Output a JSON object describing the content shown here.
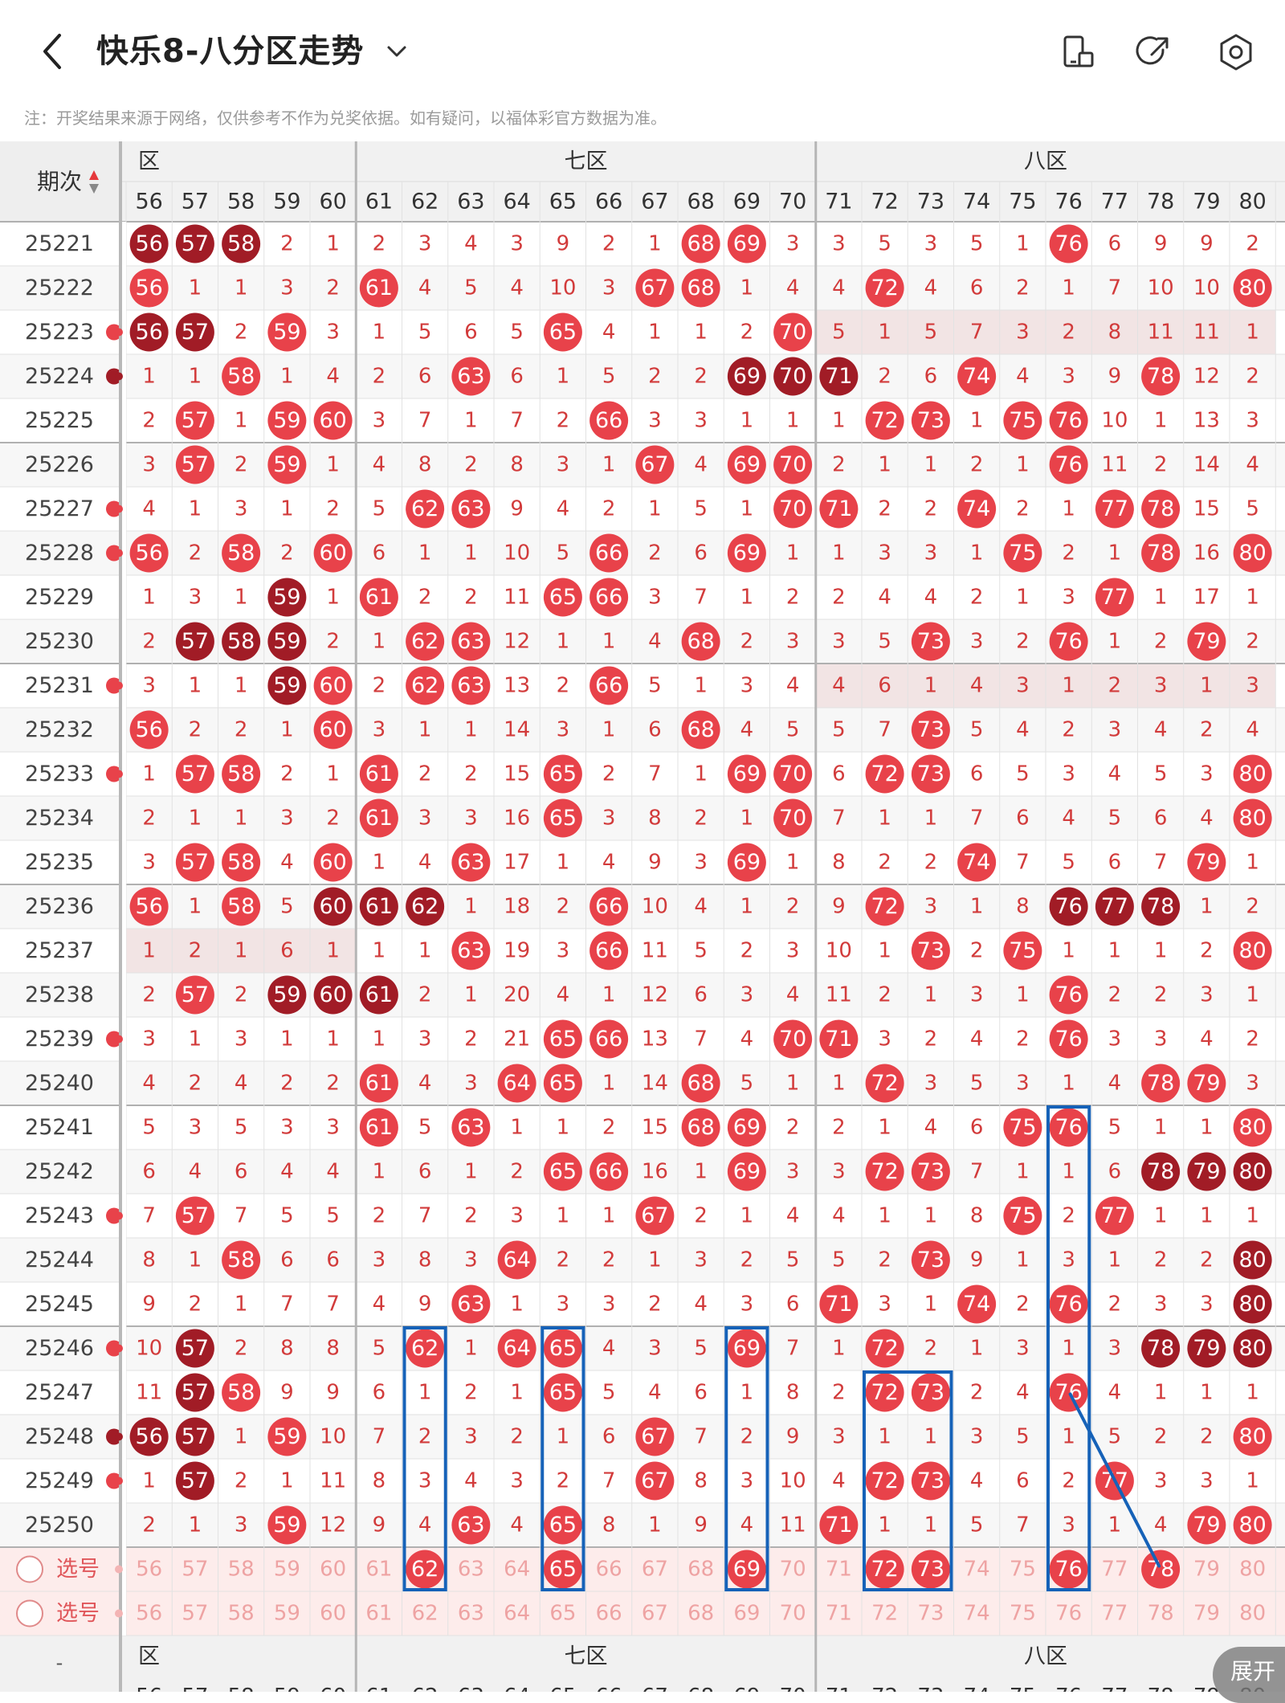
{
  "header": {
    "title": "快乐8-八分区走势",
    "back_icon": "chevron-left-icon",
    "dropdown_icon": "chevron-down-icon",
    "actions": [
      {
        "icon": "layout-icon"
      },
      {
        "icon": "share-icon"
      },
      {
        "icon": "settings-icon"
      }
    ]
  },
  "note": "注：开奖结果来源于网络，仅供参考不作为兑奖依据。如有疑问，以福体彩官方数据为准。",
  "table": {
    "period_header": "期次",
    "sort_icon": "sort-arrows-icon",
    "zones": [
      {
        "label": "六区",
        "visible_text": "区"
      },
      {
        "label": "七区",
        "visible_text": "七区"
      },
      {
        "label": "八区",
        "visible_text": "八区"
      }
    ],
    "columns": [
      "56",
      "57",
      "58",
      "59",
      "60",
      "61",
      "62",
      "63",
      "64",
      "65",
      "66",
      "67",
      "68",
      "69",
      "70",
      "71",
      "72",
      "73",
      "74",
      "75",
      "76",
      "77",
      "78",
      "79",
      "80"
    ],
    "rows": [
      {
        "period": "25221",
        "cells": [
          "56",
          "57",
          "58",
          "2",
          "1",
          "2",
          "3",
          "4",
          "3",
          "9",
          "2",
          "1",
          "68",
          "69",
          "3",
          "3",
          "5",
          "3",
          "5",
          "1",
          "76",
          "6",
          "9",
          "9",
          "2"
        ]
      },
      {
        "period": "25222",
        "cells": [
          "56",
          "1",
          "1",
          "3",
          "2",
          "61",
          "4",
          "5",
          "4",
          "10",
          "3",
          "67",
          "68",
          "1",
          "4",
          "4",
          "72",
          "4",
          "6",
          "2",
          "1",
          "7",
          "10",
          "10",
          "80"
        ]
      },
      {
        "period": "25223",
        "cells": [
          "56",
          "57",
          "2",
          "59",
          "3",
          "1",
          "5",
          "6",
          "5",
          "65",
          "4",
          "1",
          "1",
          "2",
          "70",
          "5",
          "1",
          "5",
          "7",
          "3",
          "2",
          "8",
          "11",
          "11",
          "1"
        ]
      },
      {
        "period": "25224",
        "cells": [
          "1",
          "1",
          "58",
          "1",
          "4",
          "2",
          "6",
          "63",
          "6",
          "1",
          "5",
          "2",
          "2",
          "69",
          "70",
          "71",
          "2",
          "6",
          "74",
          "4",
          "3",
          "9",
          "78",
          "12",
          "2"
        ]
      },
      {
        "period": "25225",
        "cells": [
          "2",
          "57",
          "1",
          "59",
          "60",
          "3",
          "7",
          "1",
          "7",
          "2",
          "66",
          "3",
          "3",
          "1",
          "1",
          "1",
          "72",
          "73",
          "1",
          "75",
          "76",
          "10",
          "1",
          "13",
          "3"
        ]
      },
      {
        "period": "25226",
        "cells": [
          "3",
          "57",
          "2",
          "59",
          "1",
          "4",
          "8",
          "2",
          "8",
          "3",
          "1",
          "67",
          "4",
          "69",
          "70",
          "2",
          "1",
          "1",
          "2",
          "1",
          "76",
          "11",
          "2",
          "14",
          "4"
        ]
      },
      {
        "period": "25227",
        "cells": [
          "4",
          "1",
          "3",
          "1",
          "2",
          "5",
          "62",
          "63",
          "9",
          "4",
          "2",
          "1",
          "5",
          "1",
          "70",
          "71",
          "2",
          "2",
          "74",
          "2",
          "1",
          "77",
          "78",
          "15",
          "5"
        ]
      },
      {
        "period": "25228",
        "cells": [
          "56",
          "2",
          "58",
          "2",
          "60",
          "6",
          "1",
          "1",
          "10",
          "5",
          "66",
          "2",
          "6",
          "69",
          "1",
          "1",
          "3",
          "3",
          "1",
          "75",
          "2",
          "1",
          "78",
          "16",
          "80"
        ]
      },
      {
        "period": "25229",
        "cells": [
          "1",
          "3",
          "1",
          "59",
          "1",
          "61",
          "2",
          "2",
          "11",
          "65",
          "66",
          "3",
          "7",
          "1",
          "2",
          "2",
          "4",
          "4",
          "2",
          "1",
          "3",
          "77",
          "1",
          "17",
          "1"
        ]
      },
      {
        "period": "25230",
        "cells": [
          "2",
          "57",
          "58",
          "59",
          "2",
          "1",
          "62",
          "63",
          "12",
          "1",
          "1",
          "4",
          "68",
          "2",
          "3",
          "3",
          "5",
          "73",
          "3",
          "2",
          "76",
          "1",
          "2",
          "79",
          "2"
        ]
      },
      {
        "period": "25231",
        "cells": [
          "3",
          "1",
          "1",
          "59",
          "60",
          "2",
          "62",
          "63",
          "13",
          "2",
          "66",
          "5",
          "1",
          "3",
          "4",
          "4",
          "6",
          "1",
          "4",
          "3",
          "1",
          "2",
          "3",
          "1",
          "3"
        ]
      },
      {
        "period": "25232",
        "cells": [
          "56",
          "2",
          "2",
          "1",
          "60",
          "3",
          "1",
          "1",
          "14",
          "3",
          "1",
          "6",
          "68",
          "4",
          "5",
          "5",
          "7",
          "73",
          "5",
          "4",
          "2",
          "3",
          "4",
          "2",
          "4"
        ]
      },
      {
        "period": "25233",
        "cells": [
          "1",
          "57",
          "58",
          "2",
          "1",
          "61",
          "2",
          "2",
          "15",
          "65",
          "2",
          "7",
          "1",
          "69",
          "70",
          "6",
          "72",
          "73",
          "6",
          "5",
          "3",
          "4",
          "5",
          "3",
          "80"
        ]
      },
      {
        "period": "25234",
        "cells": [
          "2",
          "1",
          "1",
          "3",
          "2",
          "61",
          "3",
          "3",
          "16",
          "65",
          "3",
          "8",
          "2",
          "1",
          "70",
          "7",
          "1",
          "1",
          "7",
          "6",
          "4",
          "5",
          "6",
          "4",
          "80"
        ]
      },
      {
        "period": "25235",
        "cells": [
          "3",
          "57",
          "58",
          "4",
          "60",
          "1",
          "4",
          "63",
          "17",
          "1",
          "4",
          "9",
          "3",
          "69",
          "1",
          "8",
          "2",
          "2",
          "74",
          "7",
          "5",
          "6",
          "7",
          "79",
          "1"
        ]
      },
      {
        "period": "25236",
        "cells": [
          "56",
          "1",
          "58",
          "5",
          "60",
          "61",
          "62",
          "1",
          "18",
          "2",
          "66",
          "10",
          "4",
          "1",
          "2",
          "9",
          "72",
          "3",
          "1",
          "8",
          "76",
          "77",
          "78",
          "1",
          "2"
        ]
      },
      {
        "period": "25237",
        "cells": [
          "1",
          "2",
          "1",
          "6",
          "1",
          "1",
          "1",
          "63",
          "19",
          "3",
          "66",
          "11",
          "5",
          "2",
          "3",
          "10",
          "1",
          "73",
          "2",
          "75",
          "1",
          "1",
          "1",
          "2",
          "80"
        ]
      },
      {
        "period": "25238",
        "cells": [
          "2",
          "57",
          "2",
          "59",
          "60",
          "61",
          "2",
          "1",
          "20",
          "4",
          "1",
          "12",
          "6",
          "3",
          "4",
          "11",
          "2",
          "1",
          "3",
          "1",
          "76",
          "2",
          "2",
          "3",
          "1"
        ]
      },
      {
        "period": "25239",
        "cells": [
          "3",
          "1",
          "3",
          "1",
          "1",
          "1",
          "3",
          "2",
          "21",
          "65",
          "66",
          "13",
          "7",
          "4",
          "70",
          "71",
          "3",
          "2",
          "4",
          "2",
          "76",
          "3",
          "3",
          "4",
          "2"
        ]
      },
      {
        "period": "25240",
        "cells": [
          "4",
          "2",
          "4",
          "2",
          "2",
          "61",
          "4",
          "3",
          "64",
          "65",
          "1",
          "14",
          "68",
          "5",
          "1",
          "1",
          "72",
          "3",
          "5",
          "3",
          "1",
          "4",
          "78",
          "79",
          "3"
        ]
      },
      {
        "period": "25241",
        "cells": [
          "5",
          "3",
          "5",
          "3",
          "3",
          "61",
          "5",
          "63",
          "1",
          "1",
          "2",
          "15",
          "68",
          "69",
          "2",
          "2",
          "1",
          "4",
          "6",
          "75",
          "76",
          "5",
          "1",
          "1",
          "80"
        ]
      },
      {
        "period": "25242",
        "cells": [
          "6",
          "4",
          "6",
          "4",
          "4",
          "1",
          "6",
          "1",
          "2",
          "65",
          "66",
          "16",
          "1",
          "69",
          "3",
          "3",
          "72",
          "73",
          "7",
          "1",
          "1",
          "6",
          "78",
          "79",
          "80"
        ]
      },
      {
        "period": "25243",
        "cells": [
          "7",
          "57",
          "7",
          "5",
          "5",
          "2",
          "7",
          "2",
          "3",
          "1",
          "1",
          "67",
          "2",
          "1",
          "4",
          "4",
          "1",
          "1",
          "8",
          "75",
          "2",
          "77",
          "1",
          "1",
          "1"
        ]
      },
      {
        "period": "25244",
        "cells": [
          "8",
          "1",
          "58",
          "6",
          "6",
          "3",
          "8",
          "3",
          "64",
          "2",
          "2",
          "1",
          "3",
          "2",
          "5",
          "5",
          "2",
          "73",
          "9",
          "1",
          "3",
          "1",
          "2",
          "2",
          "80"
        ]
      },
      {
        "period": "25245",
        "cells": [
          "9",
          "2",
          "1",
          "7",
          "7",
          "4",
          "9",
          "63",
          "1",
          "3",
          "3",
          "2",
          "4",
          "3",
          "6",
          "71",
          "3",
          "1",
          "74",
          "2",
          "76",
          "2",
          "3",
          "3",
          "80"
        ]
      },
      {
        "period": "25246",
        "cells": [
          "10",
          "57",
          "2",
          "8",
          "8",
          "5",
          "62",
          "1",
          "64",
          "65",
          "4",
          "3",
          "5",
          "69",
          "7",
          "1",
          "72",
          "2",
          "1",
          "3",
          "1",
          "3",
          "78",
          "79",
          "80"
        ]
      },
      {
        "period": "25247",
        "cells": [
          "11",
          "57",
          "58",
          "9",
          "9",
          "6",
          "1",
          "2",
          "1",
          "65",
          "5",
          "4",
          "6",
          "1",
          "8",
          "2",
          "72",
          "73",
          "2",
          "4",
          "76",
          "4",
          "1",
          "1",
          "1"
        ]
      },
      {
        "period": "25248",
        "cells": [
          "56",
          "57",
          "1",
          "59",
          "10",
          "7",
          "2",
          "3",
          "2",
          "1",
          "6",
          "67",
          "7",
          "2",
          "9",
          "3",
          "1",
          "1",
          "3",
          "5",
          "1",
          "5",
          "2",
          "2",
          "80"
        ]
      },
      {
        "period": "25249",
        "cells": [
          "1",
          "57",
          "2",
          "1",
          "11",
          "8",
          "3",
          "4",
          "3",
          "2",
          "7",
          "67",
          "8",
          "3",
          "10",
          "4",
          "72",
          "73",
          "4",
          "6",
          "2",
          "77",
          "3",
          "3",
          "1"
        ]
      },
      {
        "period": "25250",
        "cells": [
          "2",
          "1",
          "3",
          "59",
          "12",
          "9",
          "4",
          "63",
          "4",
          "65",
          "8",
          "1",
          "9",
          "4",
          "11",
          "71",
          "1",
          "1",
          "5",
          "7",
          "3",
          "1",
          "4",
          "79",
          "80"
        ]
      }
    ],
    "dark_balls": [
      [
        "56",
        "57",
        "58"
      ],
      [],
      [
        "56",
        "57"
      ],
      [
        "69",
        "70",
        "71"
      ],
      [],
      [],
      [],
      [],
      [
        "59"
      ],
      [
        "57",
        "58",
        "59"
      ],
      [
        "59"
      ],
      [],
      [],
      [],
      [],
      [
        "60",
        "61",
        "62",
        "76",
        "77",
        "78"
      ],
      [],
      [
        "59",
        "60",
        "61"
      ],
      [],
      [],
      [],
      [
        "78",
        "79",
        "80"
      ],
      [],
      [
        "80"
      ],
      [
        "80"
      ],
      [
        "57",
        "78",
        "79",
        "80"
      ],
      [
        "57"
      ],
      [
        "56",
        "57"
      ],
      [
        "57"
      ],
      []
    ],
    "left_edge_marks": [
      2,
      3,
      6,
      7,
      10,
      12,
      18,
      22,
      25,
      27,
      28
    ],
    "select_rows": [
      {
        "label": "选号",
        "picked": [
          "62",
          "65",
          "69",
          "72",
          "73",
          "76",
          "78"
        ]
      },
      {
        "label": "选号",
        "picked": []
      }
    ],
    "footer_zone_labels": [
      "区",
      "七区",
      "八区"
    ],
    "footer_period": "-",
    "ball_color": "#e8424a",
    "dark_ball_color": "#a11c26",
    "number_color": "#d23b3b",
    "grid_line_color": "#c8c8c8"
  },
  "annotations": {
    "box_color": "#1662b8",
    "boxes": [
      "62",
      "65",
      "69",
      "72-73",
      "76"
    ]
  },
  "expand_button": "展开"
}
